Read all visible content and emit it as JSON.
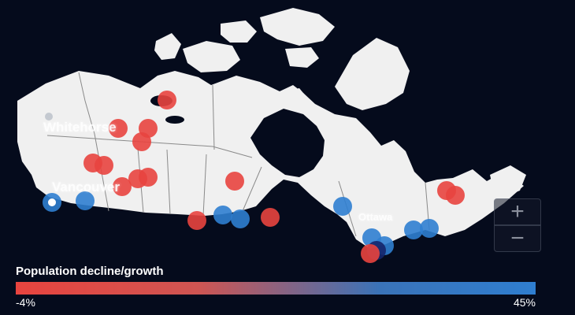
{
  "cities": [
    {
      "label": "Whitehorse"
    },
    {
      "label": "Vancouver"
    },
    {
      "label": "Ottawa"
    }
  ],
  "zoom": {
    "in_label": "+",
    "out_label": "−"
  },
  "legend": {
    "title": "Population decline/growth",
    "min_label": "-4%",
    "max_label": "45%",
    "low_color": "#e8443f",
    "high_color": "#2f7ed0"
  },
  "colors": {
    "background": "#050b1c",
    "land": "#f0f0f0",
    "borders": "#8a8a8a"
  }
}
